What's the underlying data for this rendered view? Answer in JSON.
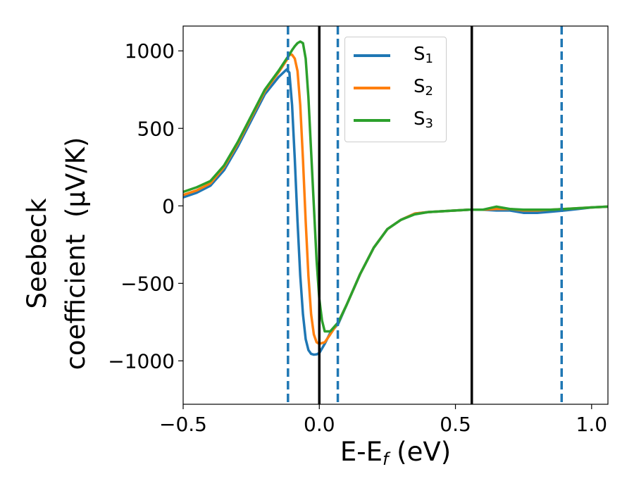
{
  "chart_data": {
    "type": "line",
    "xlabel_main": "E-E",
    "xlabel_sub": "f",
    "xlabel_unit": " (eV)",
    "ylabel": "Seebeck\ncoefficient  (μV/K)",
    "xlim": [
      -0.5,
      1.06
    ],
    "ylim": [
      -1280,
      1160
    ],
    "xticks": [
      -0.5,
      0.0,
      0.5,
      1.0
    ],
    "xtick_labels": [
      "−0.5",
      "0.0",
      "0.5",
      "1.0"
    ],
    "yticks": [
      -1000,
      -500,
      0,
      500,
      1000
    ],
    "ytick_labels": [
      "−1000",
      "−500",
      "0",
      "500",
      "1000"
    ],
    "grid": false,
    "legend_position": "top-center",
    "vlines_solid": [
      0.0,
      0.56
    ],
    "vlines_dashed": [
      -0.115,
      0.068,
      0.89
    ],
    "solid_vline_color": "#000000",
    "dashed_vline_color": "#1f77b4",
    "series": [
      {
        "name": "S",
        "name_sub": "1",
        "color": "#1f77b4",
        "x": [
          -0.5,
          -0.45,
          -0.4,
          -0.35,
          -0.3,
          -0.25,
          -0.2,
          -0.15,
          -0.12,
          -0.11,
          -0.1,
          -0.09,
          -0.08,
          -0.07,
          -0.06,
          -0.05,
          -0.04,
          -0.03,
          -0.02,
          -0.01,
          0.0,
          0.02,
          0.04,
          0.07,
          0.1,
          0.15,
          0.2,
          0.25,
          0.3,
          0.35,
          0.4,
          0.45,
          0.5,
          0.55,
          0.6,
          0.65,
          0.7,
          0.75,
          0.8,
          0.85,
          0.9,
          0.95,
          1.0,
          1.06
        ],
        "y": [
          55,
          85,
          130,
          230,
          380,
          550,
          720,
          830,
          880,
          860,
          650,
          300,
          -100,
          -450,
          -700,
          -860,
          -930,
          -955,
          -960,
          -958,
          -950,
          -890,
          -820,
          -760,
          -640,
          -440,
          -270,
          -150,
          -90,
          -50,
          -40,
          -35,
          -30,
          -25,
          -25,
          -30,
          -30,
          -45,
          -45,
          -38,
          -30,
          -20,
          -10,
          -5
        ]
      },
      {
        "name": "S",
        "name_sub": "2",
        "color": "#ff7f0e",
        "x": [
          -0.5,
          -0.45,
          -0.4,
          -0.35,
          -0.3,
          -0.25,
          -0.2,
          -0.15,
          -0.12,
          -0.11,
          -0.1,
          -0.09,
          -0.08,
          -0.07,
          -0.06,
          -0.05,
          -0.04,
          -0.03,
          -0.02,
          -0.01,
          0.0,
          0.02,
          0.04,
          0.07,
          0.1,
          0.15,
          0.2,
          0.25,
          0.3,
          0.35,
          0.4,
          0.45,
          0.5,
          0.55,
          0.6,
          0.65,
          0.7,
          0.75,
          0.8,
          0.85,
          0.9,
          0.95,
          1.0,
          1.06
        ],
        "y": [
          70,
          100,
          145,
          250,
          400,
          570,
          740,
          860,
          940,
          975,
          975,
          950,
          870,
          650,
          300,
          -100,
          -450,
          -700,
          -830,
          -880,
          -890,
          -880,
          -830,
          -750,
          -640,
          -440,
          -270,
          -150,
          -90,
          -50,
          -40,
          -35,
          -30,
          -25,
          -25,
          -20,
          -20,
          -30,
          -30,
          -25,
          -20,
          -15,
          -10,
          -5
        ]
      },
      {
        "name": "S",
        "name_sub": "3",
        "color": "#2ca02c",
        "x": [
          -0.5,
          -0.45,
          -0.4,
          -0.35,
          -0.3,
          -0.25,
          -0.2,
          -0.15,
          -0.12,
          -0.11,
          -0.1,
          -0.09,
          -0.08,
          -0.07,
          -0.06,
          -0.05,
          -0.04,
          -0.03,
          -0.02,
          -0.01,
          0.0,
          0.01,
          0.02,
          0.04,
          0.07,
          0.1,
          0.15,
          0.2,
          0.25,
          0.3,
          0.35,
          0.4,
          0.45,
          0.5,
          0.55,
          0.6,
          0.65,
          0.7,
          0.75,
          0.8,
          0.85,
          0.9,
          0.95,
          1.0,
          1.06
        ],
        "y": [
          90,
          120,
          160,
          260,
          410,
          580,
          750,
          870,
          950,
          975,
          1005,
          1030,
          1050,
          1060,
          1050,
          950,
          700,
          350,
          0,
          -350,
          -600,
          -740,
          -810,
          -810,
          -750,
          -640,
          -440,
          -270,
          -150,
          -90,
          -55,
          -40,
          -35,
          -30,
          -25,
          -25,
          -5,
          -20,
          -25,
          -25,
          -25,
          -20,
          -15,
          -10,
          -5
        ]
      }
    ]
  }
}
